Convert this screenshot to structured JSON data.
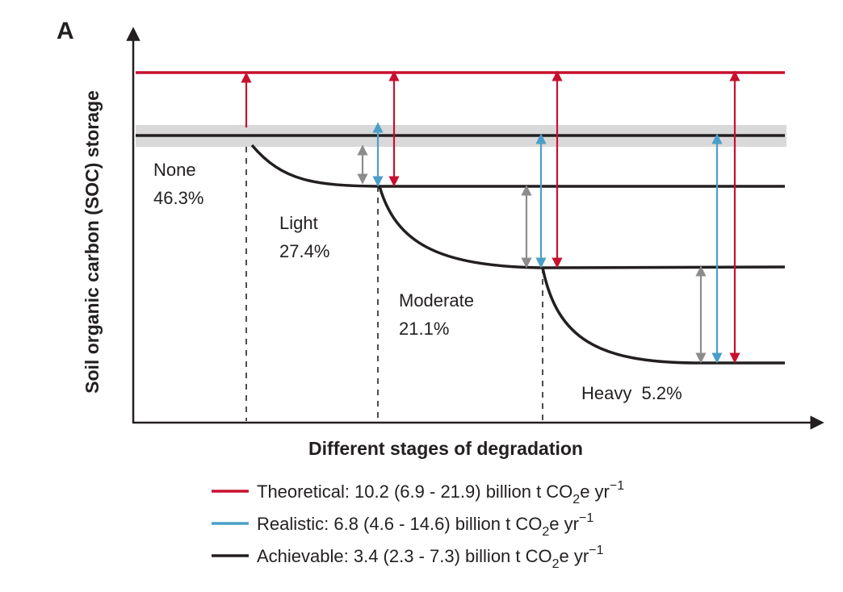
{
  "panel_label": "A",
  "y_axis_title": "Soil organic carbon (SOC) storage",
  "x_axis_title": "Different stages of degradation",
  "stages": [
    {
      "name": "None",
      "percent": "46.3%"
    },
    {
      "name": "Light",
      "percent": "27.4%"
    },
    {
      "name": "Moderate",
      "percent": "21.1%"
    },
    {
      "name": "Heavy",
      "percent": "5.2%"
    }
  ],
  "legend": [
    {
      "key": "theoretical",
      "label": "Theoretical: 10.2 (6.9 - 21.9) billion t CO",
      "sub": "2",
      "tail": "e yr",
      "sup": "−1",
      "color": "#c8102e"
    },
    {
      "key": "realistic",
      "label": "Realistic: 6.8 (4.6 - 14.6) billion t CO",
      "sub": "2",
      "tail": "e yr",
      "sup": "−1",
      "color": "#4a9fc8"
    },
    {
      "key": "achievable",
      "label": "Achievable: 3.4 (2.3 - 7.3) billion t CO",
      "sub": "2",
      "tail": "e yr",
      "sup": "−1",
      "color": "#231f20"
    }
  ],
  "colors": {
    "theoretical": "#c8102e",
    "realistic": "#4a9fc8",
    "achievable": "#231f20",
    "achievable_arrow": "#8c8c8c",
    "baseline_band": "#d9d9d9"
  }
}
